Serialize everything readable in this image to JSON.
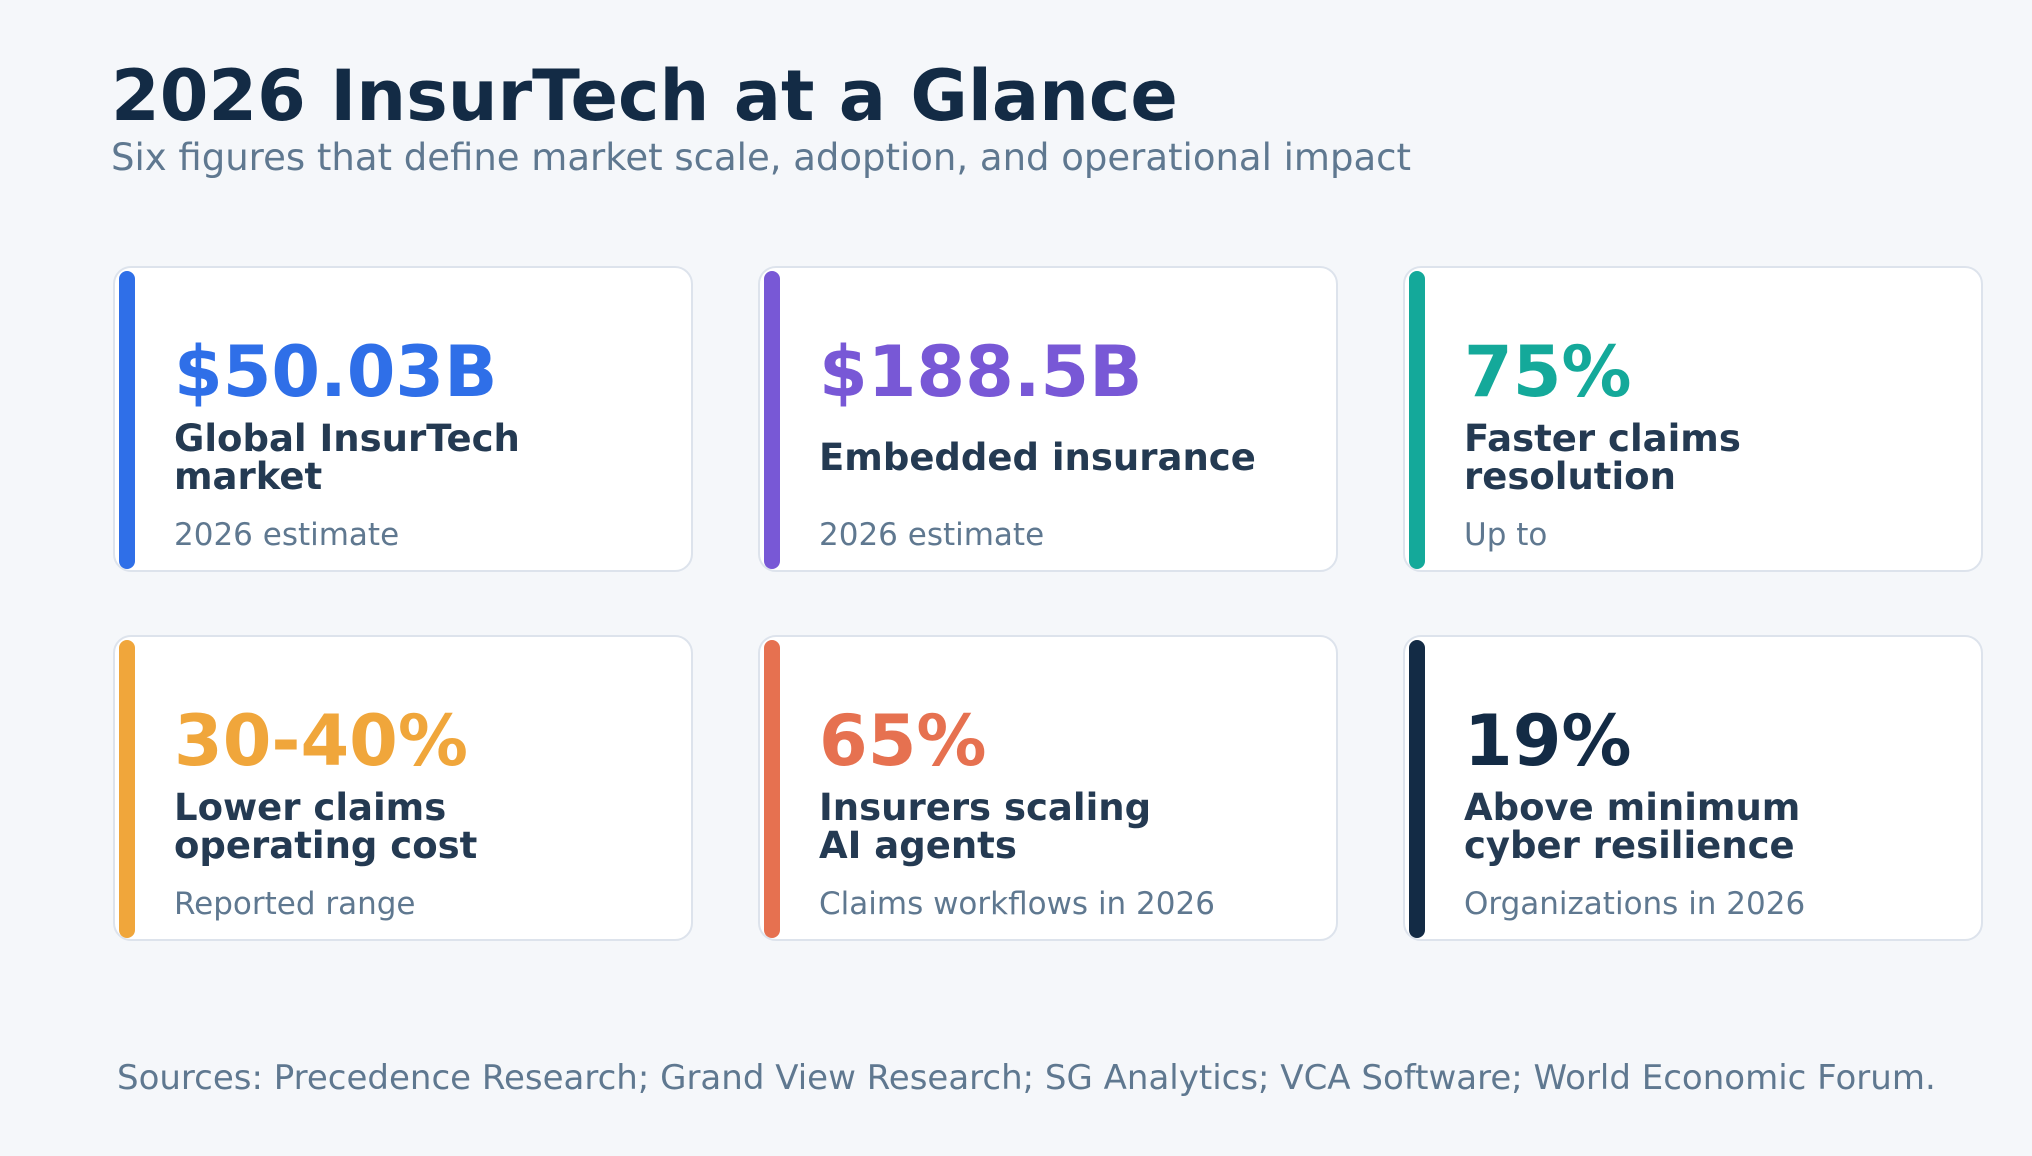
{
  "header": {
    "title": "2026 InsurTech at a Glance",
    "subtitle": "Six figures that define market scale, adoption, and operational impact"
  },
  "cards": [
    {
      "value": "$50.03B",
      "label": "Global InsurTech\nmarket",
      "note": "2026 estimate",
      "color": "#2f6fe8"
    },
    {
      "value": "$188.5B",
      "label": "Embedded insurance",
      "note": "2026 estimate",
      "color": "#7858d6"
    },
    {
      "value": "75%",
      "label": "Faster claims\nresolution",
      "note": "Up to",
      "color": "#14a99a"
    },
    {
      "value": "30-40%",
      "label": "Lower claims\noperating cost",
      "note": "Reported range",
      "color": "#f0a63b"
    },
    {
      "value": "65%",
      "label": "Insurers scaling\nAI agents",
      "note": "Claims workflows in 2026",
      "color": "#e67150"
    },
    {
      "value": "19%",
      "label": "Above minimum\ncyber resilience",
      "note": "Organizations in 2026",
      "color": "#132b45"
    }
  ],
  "footer": {
    "sources": "Sources: Precedence Research; Grand View Research; SG Analytics; VCA Software; World Economic Forum."
  }
}
